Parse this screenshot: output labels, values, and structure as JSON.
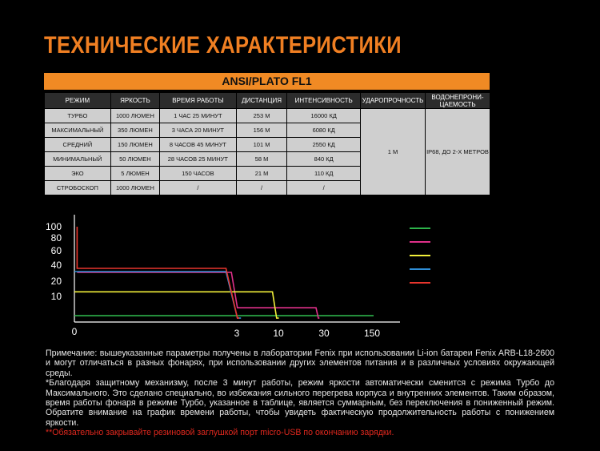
{
  "header": {
    "title": "ТЕХНИЧЕСКИЕ ХАРАКТЕРИСТИКИ",
    "standard": "ANSI/PLATO FL1"
  },
  "table": {
    "columns": [
      "РЕЖИМ",
      "ЯРКОСТЬ",
      "ВРЕМЯ РАБОТЫ",
      "ДИСТАНЦИЯ",
      "ИНТЕНСИВНОСТЬ",
      "УДАРОПРОЧНОСТЬ",
      "ВОДОНЕПРОНИ-ЦАЕМОСТЬ"
    ],
    "rows": [
      [
        "ТУРБО",
        "1000 ЛЮМЕН",
        "1 ЧАС 25 МИНУТ",
        "253 М",
        "16000 КД"
      ],
      [
        "МАКСИМАЛЬНЫЙ",
        "350 ЛЮМЕН",
        "3 ЧАСА 20 МИНУТ",
        "156 М",
        "6080 КД"
      ],
      [
        "СРЕДНИЙ",
        "150 ЛЮМЕН",
        "8 ЧАСОВ 45 МИНУТ",
        "101 М",
        "2550 КД"
      ],
      [
        "МИНИМАЛЬНЫЙ",
        "50 ЛЮМЕН",
        "28 ЧАСОВ 25 МИНУТ",
        "58 М",
        "840 КД"
      ],
      [
        "ЭКО",
        "5 ЛЮМЕН",
        "150 ЧАСОВ",
        "21 М",
        "110 КД"
      ],
      [
        "СТРОБОСКОП",
        "1000 ЛЮМЕН",
        "/",
        "/",
        "/"
      ]
    ],
    "merged": [
      "1 М",
      "IP68, ДО 2-Х МЕТРОВ"
    ]
  },
  "chart_data": {
    "type": "line",
    "xticks": [
      0,
      3,
      10,
      30,
      150
    ],
    "yticks": [
      0,
      10,
      20,
      40,
      60,
      80,
      100
    ],
    "series": [
      {
        "color": "#2db34a",
        "x": [
          0,
          154
        ],
        "values": [
          4.4,
          4.4
        ]
      },
      {
        "color": "#e0308a",
        "x": [
          0.05,
          2.9,
          3.1,
          26.5,
          27.5,
          28
        ],
        "values": [
          31,
          31,
          6.7,
          6.7,
          3.7,
          3.7
        ]
      },
      {
        "color": "#f2f03a",
        "x": [
          0,
          9,
          9.7,
          10.2
        ],
        "values": [
          13,
          13,
          3.7,
          3.7
        ]
      },
      {
        "color": "#2f8fd8",
        "x": [
          0,
          2.8,
          3.1,
          3.7
        ],
        "values": [
          32,
          32,
          3.7,
          3.7
        ]
      },
      {
        "color": "#e8352d",
        "x": [
          0.05,
          0.05,
          2.8,
          3.1,
          3.4
        ],
        "values": [
          100,
          36,
          36,
          3.7,
          3.7
        ]
      }
    ]
  },
  "notes": [
    "Примечание: вышеуказанные параметры получены в лаборатории Fenix при использовании Li-ion батареи Fenix ARB-L18-2600 и могут отличаться в разных фонарях, при использовании других элементов питания и в различных условиях окружающей среды.",
    "*Благодаря защитному механизму, после 3 минут работы, режим яркости автоматически сменится с режима Турбо до Максимального. Это сделано специально, во избежания сильного перегрева корпуса и внутренних элементов. Таким образом, время работы фонаря в режиме Турбо, указанное в таблице, является суммарным, без переключения в пониженный режим. Обратите внимание на график времени работы, чтобы увидеть фактическую продолжительность работы с понижением яркости.",
    "**Обязательно закрывайте резиновой заглушкой порт micro-USB по окончанию зарядки."
  ]
}
